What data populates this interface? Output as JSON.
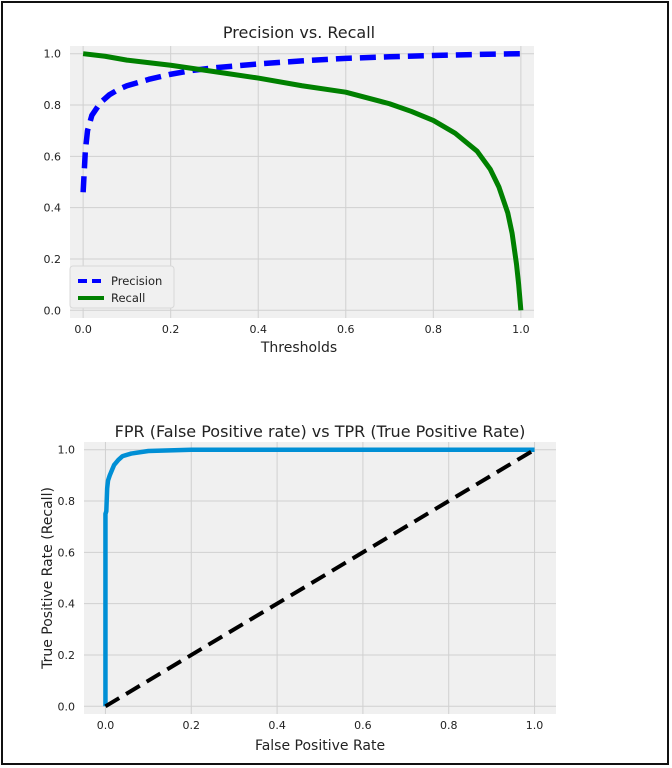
{
  "chart_data": [
    {
      "type": "line",
      "title": "Precision vs. Recall",
      "xlabel": "Thresholds",
      "ylabel": "",
      "xlim": [
        -0.03,
        1.03
      ],
      "ylim": [
        -0.03,
        1.03
      ],
      "xticks": [
        "0.0",
        "0.2",
        "0.4",
        "0.6",
        "0.8",
        "1.0"
      ],
      "yticks": [
        "0.0",
        "0.2",
        "0.4",
        "0.6",
        "0.8",
        "1.0"
      ],
      "grid": true,
      "legend": "lower-left",
      "series": [
        {
          "name": "Precision",
          "color": "#0000ff",
          "style": "dashed",
          "x": [
            0.0,
            0.005,
            0.01,
            0.02,
            0.04,
            0.06,
            0.08,
            0.1,
            0.15,
            0.2,
            0.25,
            0.3,
            0.4,
            0.5,
            0.6,
            0.7,
            0.8,
            0.9,
            1.0
          ],
          "y": [
            0.46,
            0.62,
            0.7,
            0.76,
            0.81,
            0.84,
            0.86,
            0.875,
            0.9,
            0.92,
            0.935,
            0.945,
            0.96,
            0.972,
            0.982,
            0.988,
            0.993,
            0.997,
            1.0
          ]
        },
        {
          "name": "Recall",
          "color": "#008000",
          "style": "solid",
          "x": [
            0.0,
            0.05,
            0.1,
            0.2,
            0.3,
            0.4,
            0.5,
            0.6,
            0.7,
            0.75,
            0.8,
            0.85,
            0.9,
            0.93,
            0.95,
            0.97,
            0.98,
            0.99,
            0.995,
            1.0
          ],
          "y": [
            1.0,
            0.99,
            0.975,
            0.955,
            0.93,
            0.905,
            0.875,
            0.85,
            0.805,
            0.775,
            0.74,
            0.69,
            0.62,
            0.55,
            0.48,
            0.38,
            0.3,
            0.18,
            0.1,
            0.0
          ]
        }
      ]
    },
    {
      "type": "line",
      "title": "FPR (False Positive rate) vs TPR (True Positive Rate)",
      "xlabel": "False Positive Rate",
      "ylabel": "True Positive Rate (Recall)",
      "xlim": [
        -0.05,
        1.05
      ],
      "ylim": [
        -0.03,
        1.03
      ],
      "xticks": [
        "0.0",
        "0.2",
        "0.4",
        "0.6",
        "0.8",
        "1.0"
      ],
      "yticks": [
        "0.0",
        "0.2",
        "0.4",
        "0.6",
        "0.8",
        "1.0"
      ],
      "grid": true,
      "series": [
        {
          "color": "#008fd5",
          "style": "solid",
          "x": [
            0.0,
            0.0,
            0.002,
            0.004,
            0.006,
            0.01,
            0.015,
            0.02,
            0.03,
            0.04,
            0.06,
            0.1,
            0.2,
            0.4,
            1.0
          ],
          "y": [
            0.0,
            0.75,
            0.76,
            0.85,
            0.88,
            0.9,
            0.92,
            0.94,
            0.96,
            0.975,
            0.985,
            0.995,
            1.0,
            1.0,
            1.0
          ]
        },
        {
          "color": "#000000",
          "style": "dashed",
          "x": [
            0.0,
            1.0
          ],
          "y": [
            0.0,
            1.0
          ]
        }
      ]
    }
  ]
}
